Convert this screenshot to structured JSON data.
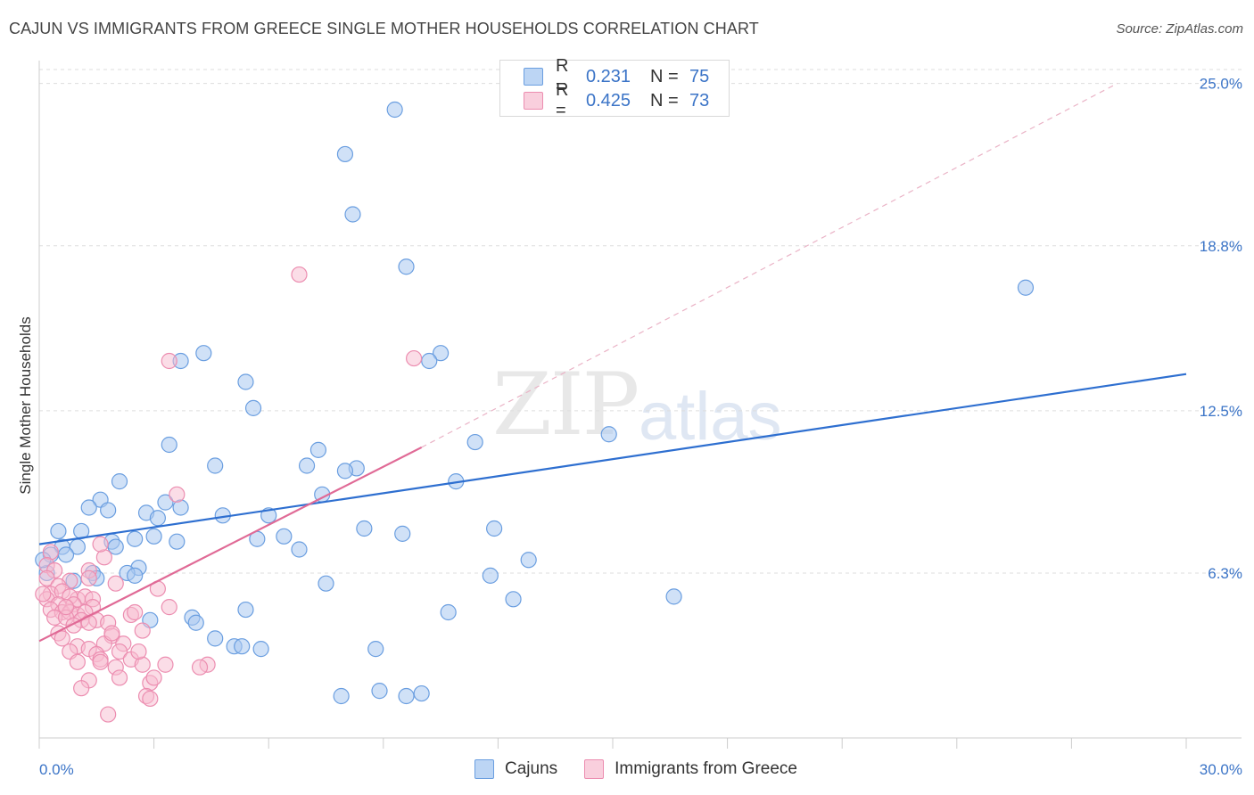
{
  "title": "CAJUN VS IMMIGRANTS FROM GREECE SINGLE MOTHER HOUSEHOLDS CORRELATION CHART",
  "source": "Source: ZipAtlas.com",
  "watermark": {
    "zip": "ZIP",
    "atlas": "atlas"
  },
  "legend_top": [
    {
      "r_label": "R =",
      "r_value": "0.231",
      "n_label": "N =",
      "n_value": "75"
    },
    {
      "r_label": "R =",
      "r_value": "0.425",
      "n_label": "N =",
      "n_value": "73"
    }
  ],
  "colors": {
    "blue_fill": "#a9c8f0",
    "blue_stroke": "#6a9ee0",
    "blue_line": "#2e6fd0",
    "pink_fill": "#f7bcd0",
    "pink_stroke": "#ec8db0",
    "pink_line": "#e06a96",
    "axis_text": "#3b74c7",
    "grid": "#dddddd"
  },
  "chart_data": {
    "type": "scatter",
    "title": "CAJUN VS IMMIGRANTS FROM GREECE SINGLE MOTHER HOUSEHOLDS CORRELATION CHART",
    "xlabel": "",
    "ylabel": "Single Mother Households",
    "xlim": [
      0,
      30
    ],
    "ylim": [
      0,
      25.6
    ],
    "x_tick_labels": [
      {
        "value": 0,
        "label": "0.0%"
      },
      {
        "value": 30,
        "label": "30.0%"
      }
    ],
    "x_minor_ticks": [
      0,
      3,
      6,
      9,
      12,
      15,
      18,
      21,
      24,
      27,
      30
    ],
    "y_tick_labels": [
      {
        "value": 6.3,
        "label": "6.3%"
      },
      {
        "value": 12.5,
        "label": "12.5%"
      },
      {
        "value": 18.8,
        "label": "18.8%"
      },
      {
        "value": 25.0,
        "label": "25.0%"
      }
    ],
    "grid": true,
    "legend_position": "top-center",
    "series": [
      {
        "name": "Cajuns",
        "r": 0.231,
        "n": 75,
        "trend": {
          "x0": 0,
          "y0": 7.4,
          "x1": 30,
          "y1": 13.9
        },
        "points": [
          [
            9.3,
            24.0
          ],
          [
            8.0,
            22.3
          ],
          [
            8.2,
            20.0
          ],
          [
            9.6,
            18.0
          ],
          [
            25.8,
            17.2
          ],
          [
            4.3,
            14.7
          ],
          [
            3.7,
            14.4
          ],
          [
            10.5,
            14.7
          ],
          [
            10.2,
            14.4
          ],
          [
            5.4,
            13.6
          ],
          [
            5.6,
            12.6
          ],
          [
            14.9,
            11.6
          ],
          [
            11.4,
            11.3
          ],
          [
            3.4,
            11.2
          ],
          [
            7.3,
            11.0
          ],
          [
            4.6,
            10.4
          ],
          [
            7.0,
            10.4
          ],
          [
            8.3,
            10.3
          ],
          [
            8.0,
            10.2
          ],
          [
            10.9,
            9.8
          ],
          [
            2.1,
            9.8
          ],
          [
            1.6,
            9.1
          ],
          [
            7.4,
            9.3
          ],
          [
            1.3,
            8.8
          ],
          [
            1.8,
            8.7
          ],
          [
            3.3,
            9.0
          ],
          [
            3.7,
            8.8
          ],
          [
            2.8,
            8.6
          ],
          [
            3.1,
            8.4
          ],
          [
            4.8,
            8.5
          ],
          [
            6.0,
            8.5
          ],
          [
            8.5,
            8.0
          ],
          [
            11.9,
            8.0
          ],
          [
            0.5,
            7.9
          ],
          [
            1.1,
            7.9
          ],
          [
            9.5,
            7.8
          ],
          [
            3.0,
            7.7
          ],
          [
            3.6,
            7.5
          ],
          [
            2.5,
            7.6
          ],
          [
            5.7,
            7.6
          ],
          [
            6.4,
            7.7
          ],
          [
            1.9,
            7.5
          ],
          [
            2.0,
            7.3
          ],
          [
            6.8,
            7.2
          ],
          [
            1.0,
            7.3
          ],
          [
            0.6,
            7.3
          ],
          [
            0.3,
            7.0
          ],
          [
            0.7,
            7.0
          ],
          [
            12.8,
            6.8
          ],
          [
            2.6,
            6.5
          ],
          [
            1.4,
            6.3
          ],
          [
            0.2,
            6.3
          ],
          [
            2.3,
            6.3
          ],
          [
            2.5,
            6.2
          ],
          [
            1.5,
            6.1
          ],
          [
            0.9,
            6.0
          ],
          [
            11.8,
            6.2
          ],
          [
            7.5,
            5.9
          ],
          [
            16.6,
            5.4
          ],
          [
            12.4,
            5.3
          ],
          [
            5.4,
            4.9
          ],
          [
            10.7,
            4.8
          ],
          [
            4.0,
            4.6
          ],
          [
            4.1,
            4.4
          ],
          [
            2.9,
            4.5
          ],
          [
            4.6,
            3.8
          ],
          [
            5.1,
            3.5
          ],
          [
            5.3,
            3.5
          ],
          [
            5.8,
            3.4
          ],
          [
            8.8,
            3.4
          ],
          [
            7.9,
            1.6
          ],
          [
            8.9,
            1.8
          ],
          [
            9.6,
            1.6
          ],
          [
            10.0,
            1.7
          ],
          [
            0.1,
            6.8
          ]
        ]
      },
      {
        "name": "Immigrants from Greece",
        "r": 0.425,
        "n": 73,
        "trend": {
          "x0": 0,
          "y0": 3.7,
          "x1": 10.0,
          "y1": 11.1,
          "dash_x1": 28.2,
          "dash_y1": 25.0
        },
        "points": [
          [
            6.8,
            17.7
          ],
          [
            3.4,
            14.4
          ],
          [
            9.8,
            14.5
          ],
          [
            3.6,
            9.3
          ],
          [
            3.1,
            5.7
          ],
          [
            0.3,
            7.1
          ],
          [
            0.2,
            6.6
          ],
          [
            0.4,
            6.4
          ],
          [
            0.2,
            6.1
          ],
          [
            1.7,
            6.9
          ],
          [
            1.3,
            6.4
          ],
          [
            1.6,
            7.4
          ],
          [
            1.3,
            6.1
          ],
          [
            2.0,
            5.9
          ],
          [
            0.8,
            6.0
          ],
          [
            0.5,
            5.8
          ],
          [
            0.3,
            5.5
          ],
          [
            0.2,
            5.3
          ],
          [
            0.6,
            5.6
          ],
          [
            1.0,
            5.3
          ],
          [
            0.8,
            5.4
          ],
          [
            1.2,
            5.4
          ],
          [
            1.4,
            5.3
          ],
          [
            0.5,
            5.1
          ],
          [
            0.9,
            5.1
          ],
          [
            1.4,
            5.0
          ],
          [
            0.3,
            4.9
          ],
          [
            0.6,
            4.8
          ],
          [
            0.8,
            4.8
          ],
          [
            1.0,
            4.7
          ],
          [
            1.2,
            4.8
          ],
          [
            0.4,
            4.6
          ],
          [
            0.7,
            4.6
          ],
          [
            1.1,
            4.5
          ],
          [
            1.5,
            4.5
          ],
          [
            0.9,
            4.3
          ],
          [
            1.3,
            4.4
          ],
          [
            2.4,
            4.7
          ],
          [
            2.5,
            4.8
          ],
          [
            3.4,
            5.0
          ],
          [
            0.5,
            4.0
          ],
          [
            0.6,
            3.8
          ],
          [
            1.8,
            4.4
          ],
          [
            2.7,
            4.1
          ],
          [
            1.9,
            3.9
          ],
          [
            1.7,
            3.6
          ],
          [
            2.2,
            3.6
          ],
          [
            1.0,
            3.5
          ],
          [
            1.3,
            3.4
          ],
          [
            0.8,
            3.3
          ],
          [
            1.5,
            3.2
          ],
          [
            2.1,
            3.3
          ],
          [
            1.6,
            3.0
          ],
          [
            2.4,
            3.0
          ],
          [
            1.0,
            2.9
          ],
          [
            1.6,
            2.9
          ],
          [
            2.0,
            2.7
          ],
          [
            2.7,
            2.8
          ],
          [
            3.3,
            2.8
          ],
          [
            4.4,
            2.8
          ],
          [
            4.2,
            2.7
          ],
          [
            2.1,
            2.3
          ],
          [
            2.9,
            2.1
          ],
          [
            1.3,
            2.2
          ],
          [
            2.8,
            1.6
          ],
          [
            2.9,
            1.5
          ],
          [
            1.1,
            1.9
          ],
          [
            1.8,
            0.9
          ],
          [
            3.0,
            2.3
          ],
          [
            0.1,
            5.5
          ],
          [
            0.7,
            5.0
          ],
          [
            1.9,
            4.0
          ],
          [
            2.6,
            3.3
          ]
        ]
      }
    ]
  },
  "legend_bottom": [
    {
      "label": "Cajuns"
    },
    {
      "label": "Immigrants from Greece"
    }
  ]
}
